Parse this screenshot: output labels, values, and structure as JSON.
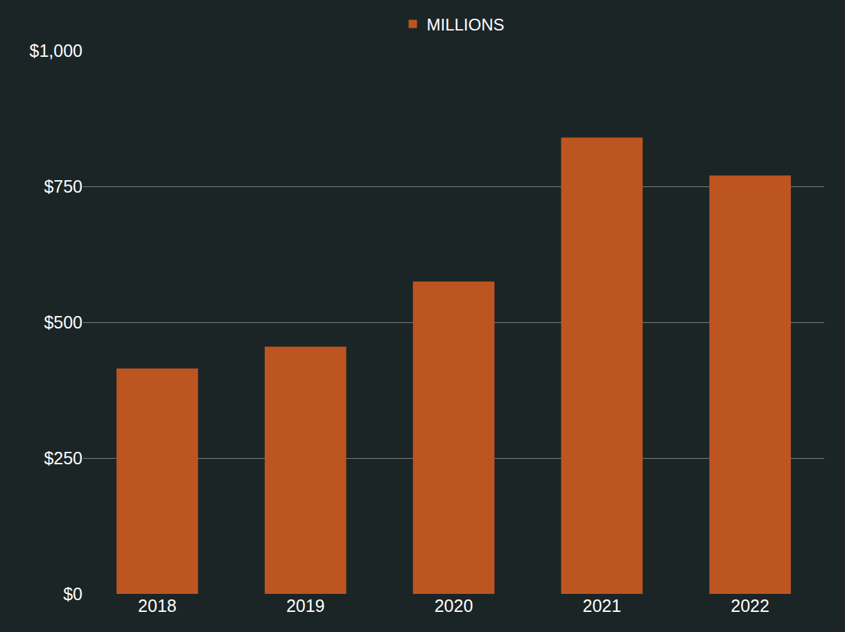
{
  "chart_data": {
    "type": "bar",
    "categories": [
      "2018",
      "2019",
      "2020",
      "2021",
      "2022"
    ],
    "series": [
      {
        "name": "MILLIONS",
        "color": "#bd5520",
        "values": [
          415,
          455,
          575,
          840,
          770
        ]
      }
    ],
    "ylim": [
      0,
      1000
    ],
    "yticks": [
      {
        "value": 0,
        "label": "$0"
      },
      {
        "value": 250,
        "label": "$250"
      },
      {
        "value": 500,
        "label": "$500"
      },
      {
        "value": 750,
        "label": "$750"
      },
      {
        "value": 1000,
        "label": "$1,000"
      }
    ],
    "grid": true,
    "legend": "top"
  }
}
